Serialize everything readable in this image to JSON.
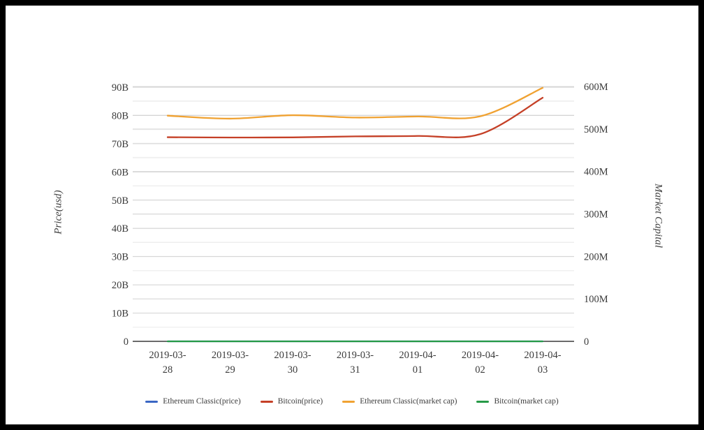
{
  "window": {
    "background": "#ffffff",
    "frame_color": "#000000"
  },
  "chart_data": {
    "type": "line",
    "title": "",
    "x": [
      "2019-03-28",
      "2019-03-29",
      "2019-03-30",
      "2019-03-31",
      "2019-04-01",
      "2019-04-02",
      "2019-04-03"
    ],
    "left_axis": {
      "title": "Price(usd)",
      "tick_values": [
        0,
        10,
        20,
        30,
        40,
        50,
        60,
        70,
        80,
        90
      ],
      "tick_labels": [
        "0",
        "10B",
        "20B",
        "30B",
        "40B",
        "50B",
        "60B",
        "70B",
        "80B",
        "90B"
      ],
      "range": [
        0,
        90
      ],
      "unit": "billions USD"
    },
    "right_axis": {
      "title": "Market Capital",
      "tick_values": [
        0,
        100,
        200,
        300,
        400,
        500,
        600
      ],
      "tick_labels": [
        "0",
        "100M",
        "200M",
        "300M",
        "400M",
        "500M",
        "600M"
      ],
      "range": [
        0,
        600
      ],
      "unit": "millions USD"
    },
    "series": [
      {
        "name": "Ethereum Classic(price)",
        "color": "#3A66C4",
        "axis": "left",
        "values": [
          0,
          0,
          0,
          0,
          0,
          0,
          0
        ]
      },
      {
        "name": "Bitcoin(price)",
        "color": "#C54027",
        "axis": "left",
        "values": [
          72.3,
          72.2,
          72.25,
          72.6,
          72.75,
          73.4,
          86.3
        ]
      },
      {
        "name": "Ethereum Classic(market cap)",
        "color": "#F0A232",
        "axis": "right",
        "values": [
          531.5,
          524.5,
          532.5,
          527,
          529.5,
          530,
          597
        ]
      },
      {
        "name": "Bitcoin(market cap)",
        "color": "#279A47",
        "axis": "right",
        "values": [
          0,
          0,
          0,
          0,
          0,
          0,
          0
        ]
      }
    ],
    "legend_position": "bottom",
    "grid": true
  }
}
